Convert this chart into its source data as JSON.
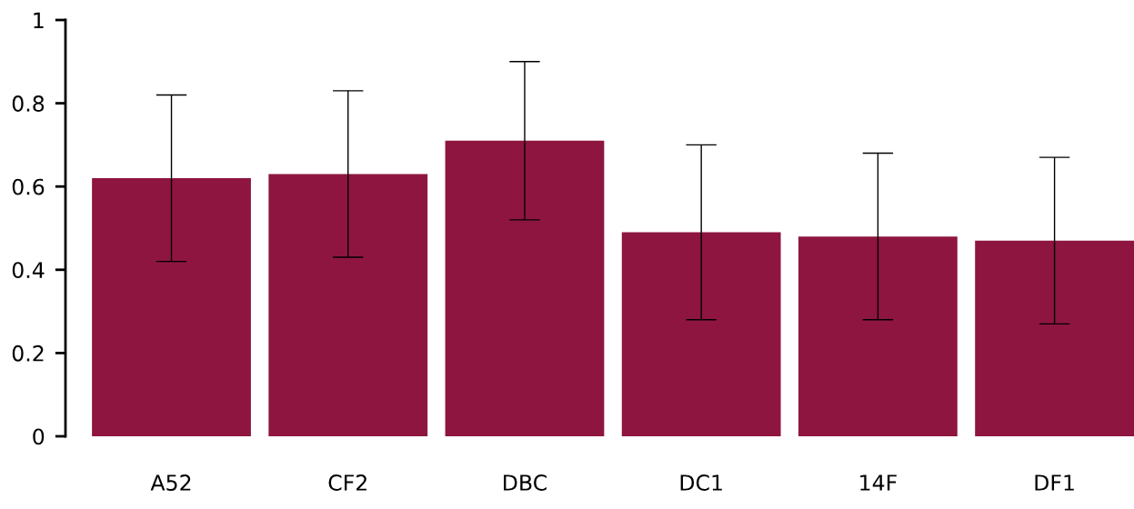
{
  "chart_data": {
    "type": "bar",
    "categories": [
      "A52",
      "CF2",
      "DBC",
      "DC1",
      "14F",
      "DF1"
    ],
    "values": [
      0.62,
      0.63,
      0.71,
      0.49,
      0.48,
      0.47
    ],
    "errors": [
      0.2,
      0.2,
      0.19,
      0.21,
      0.2,
      0.2
    ],
    "color": "#8e1540",
    "ylim": [
      0,
      1
    ],
    "yticks": [
      0,
      0.2,
      0.4,
      0.6,
      0.8,
      1
    ],
    "grid": false,
    "legend": false
  }
}
